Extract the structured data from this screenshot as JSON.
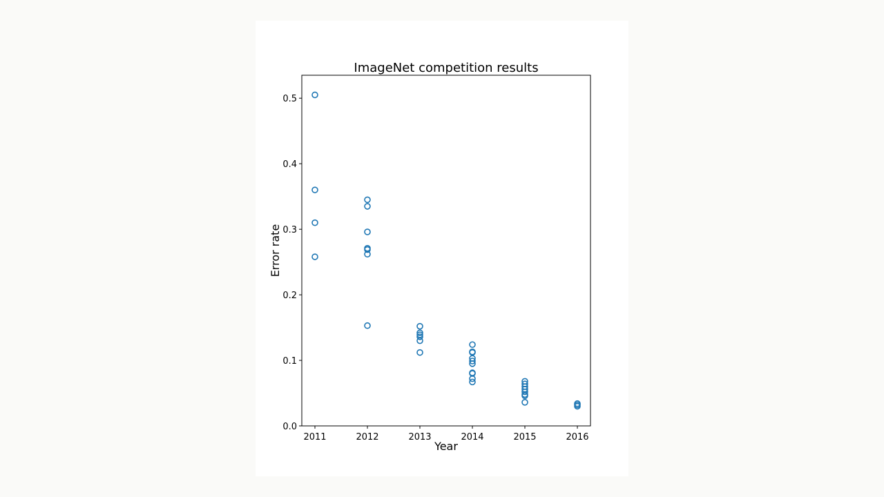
{
  "chart_data": {
    "type": "scatter",
    "title": "ImageNet competition results",
    "xlabel": "Year",
    "ylabel": "Error rate",
    "xlim": [
      2010.75,
      2016.25
    ],
    "ylim": [
      0.0,
      0.535
    ],
    "x_ticks": [
      "2011",
      "2012",
      "2013",
      "2014",
      "2015",
      "2016"
    ],
    "y_ticks": [
      "0.0",
      "0.1",
      "0.2",
      "0.3",
      "0.4",
      "0.5"
    ],
    "grid": false,
    "marker": "open-circle",
    "marker_color": "#1f77b4",
    "points": [
      {
        "x": 2011,
        "y": 0.505
      },
      {
        "x": 2011,
        "y": 0.36
      },
      {
        "x": 2011,
        "y": 0.31
      },
      {
        "x": 2011,
        "y": 0.258
      },
      {
        "x": 2012,
        "y": 0.345
      },
      {
        "x": 2012,
        "y": 0.335
      },
      {
        "x": 2012,
        "y": 0.296
      },
      {
        "x": 2012,
        "y": 0.271
      },
      {
        "x": 2012,
        "y": 0.269
      },
      {
        "x": 2012,
        "y": 0.262
      },
      {
        "x": 2012,
        "y": 0.153
      },
      {
        "x": 2013,
        "y": 0.152
      },
      {
        "x": 2013,
        "y": 0.142
      },
      {
        "x": 2013,
        "y": 0.139
      },
      {
        "x": 2013,
        "y": 0.136
      },
      {
        "x": 2013,
        "y": 0.13
      },
      {
        "x": 2013,
        "y": 0.112
      },
      {
        "x": 2014,
        "y": 0.124
      },
      {
        "x": 2014,
        "y": 0.113
      },
      {
        "x": 2014,
        "y": 0.112
      },
      {
        "x": 2014,
        "y": 0.103
      },
      {
        "x": 2014,
        "y": 0.099
      },
      {
        "x": 2014,
        "y": 0.095
      },
      {
        "x": 2014,
        "y": 0.081
      },
      {
        "x": 2014,
        "y": 0.08
      },
      {
        "x": 2014,
        "y": 0.072
      },
      {
        "x": 2014,
        "y": 0.067
      },
      {
        "x": 2015,
        "y": 0.068
      },
      {
        "x": 2015,
        "y": 0.064
      },
      {
        "x": 2015,
        "y": 0.06
      },
      {
        "x": 2015,
        "y": 0.056
      },
      {
        "x": 2015,
        "y": 0.052
      },
      {
        "x": 2015,
        "y": 0.048
      },
      {
        "x": 2015,
        "y": 0.046
      },
      {
        "x": 2015,
        "y": 0.036
      },
      {
        "x": 2016,
        "y": 0.034
      },
      {
        "x": 2016,
        "y": 0.032
      },
      {
        "x": 2016,
        "y": 0.03
      }
    ]
  }
}
